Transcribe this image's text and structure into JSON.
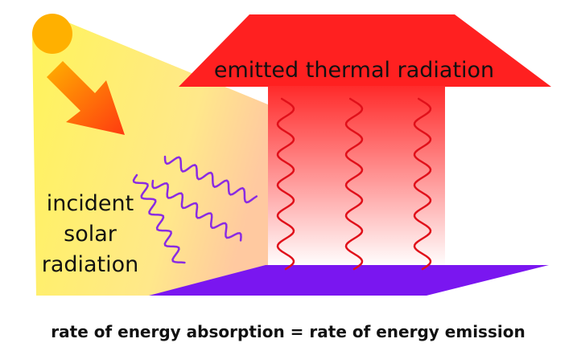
{
  "labels": {
    "emitted": "emitted thermal radiation",
    "incident": [
      "incident",
      "solar",
      "radiation"
    ]
  },
  "caption": "rate of energy absorption = rate of energy emission"
}
